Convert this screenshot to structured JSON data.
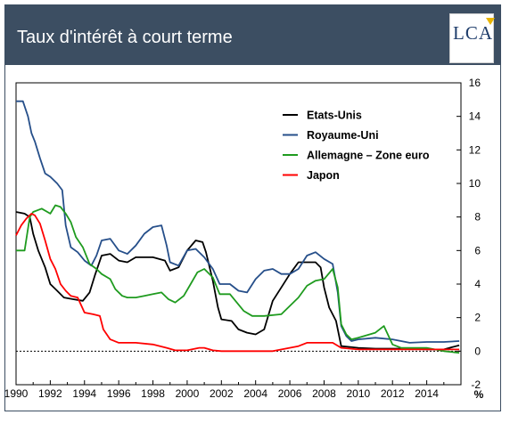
{
  "header": {
    "title": "Taux d'intérêt à court terme",
    "logo_text": "LCA"
  },
  "colors": {
    "header_bg": "#3c4e62",
    "us": "#000000",
    "uk": "#264f8a",
    "de": "#1f9b1f",
    "jp": "#ff0000"
  },
  "chart_data": {
    "type": "line",
    "title": "Taux d'intérêt à court terme",
    "xlabel": "",
    "ylabel": "%",
    "xlim": [
      1990,
      2016
    ],
    "ylim": [
      -2,
      16
    ],
    "x_ticks": [
      1990,
      1992,
      1994,
      1996,
      1998,
      2000,
      2002,
      2004,
      2006,
      2008,
      2010,
      2012,
      2014
    ],
    "y_ticks": [
      -2,
      0,
      2,
      4,
      6,
      8,
      10,
      12,
      14,
      16
    ],
    "unit_label": "%",
    "legend_position": "top-right",
    "zero_line": "dashed",
    "series": [
      {
        "name": "Etats-Unis",
        "color": "#000000",
        "points": [
          [
            1990,
            8.3
          ],
          [
            1990.5,
            8.2
          ],
          [
            1990.8,
            8.0
          ],
          [
            1991,
            7.0
          ],
          [
            1991.3,
            6.0
          ],
          [
            1991.7,
            5.0
          ],
          [
            1992,
            4.0
          ],
          [
            1992.4,
            3.6
          ],
          [
            1992.8,
            3.2
          ],
          [
            1993.3,
            3.1
          ],
          [
            1993.9,
            3.0
          ],
          [
            1994.3,
            3.5
          ],
          [
            1994.6,
            4.5
          ],
          [
            1995,
            5.7
          ],
          [
            1995.5,
            5.8
          ],
          [
            1996,
            5.4
          ],
          [
            1996.5,
            5.3
          ],
          [
            1997,
            5.6
          ],
          [
            1997.5,
            5.6
          ],
          [
            1998,
            5.6
          ],
          [
            1998.7,
            5.4
          ],
          [
            1999,
            4.8
          ],
          [
            1999.5,
            5.0
          ],
          [
            2000,
            6.0
          ],
          [
            2000.5,
            6.6
          ],
          [
            2000.9,
            6.5
          ],
          [
            2001.1,
            5.9
          ],
          [
            2001.5,
            4.2
          ],
          [
            2001.8,
            2.6
          ],
          [
            2002,
            1.9
          ],
          [
            2002.6,
            1.8
          ],
          [
            2003,
            1.3
          ],
          [
            2003.5,
            1.1
          ],
          [
            2004,
            1.0
          ],
          [
            2004.5,
            1.3
          ],
          [
            2005,
            3.0
          ],
          [
            2005.5,
            3.8
          ],
          [
            2006,
            4.6
          ],
          [
            2006.5,
            5.3
          ],
          [
            2007,
            5.3
          ],
          [
            2007.5,
            5.3
          ],
          [
            2007.8,
            5.0
          ],
          [
            2008,
            3.8
          ],
          [
            2008.3,
            2.6
          ],
          [
            2008.7,
            1.8
          ],
          [
            2009,
            0.3
          ],
          [
            2009.5,
            0.25
          ],
          [
            2010,
            0.2
          ],
          [
            2011,
            0.15
          ],
          [
            2012,
            0.15
          ],
          [
            2013,
            0.15
          ],
          [
            2014,
            0.1
          ],
          [
            2015,
            0.1
          ],
          [
            2015.9,
            0.35
          ]
        ]
      },
      {
        "name": "Royaume-Uni",
        "color": "#264f8a",
        "points": [
          [
            1990,
            14.9
          ],
          [
            1990.4,
            14.9
          ],
          [
            1990.7,
            14.0
          ],
          [
            1990.9,
            13.0
          ],
          [
            1991.1,
            12.5
          ],
          [
            1991.4,
            11.5
          ],
          [
            1991.7,
            10.6
          ],
          [
            1992,
            10.4
          ],
          [
            1992.4,
            10.0
          ],
          [
            1992.7,
            9.6
          ],
          [
            1992.9,
            7.5
          ],
          [
            1993.2,
            6.2
          ],
          [
            1993.6,
            5.9
          ],
          [
            1994,
            5.4
          ],
          [
            1994.4,
            5.1
          ],
          [
            1994.7,
            5.7
          ],
          [
            1995,
            6.6
          ],
          [
            1995.5,
            6.7
          ],
          [
            1996,
            6.0
          ],
          [
            1996.5,
            5.8
          ],
          [
            1997,
            6.3
          ],
          [
            1997.5,
            7.0
          ],
          [
            1998,
            7.4
          ],
          [
            1998.5,
            7.5
          ],
          [
            1998.8,
            6.3
          ],
          [
            1999,
            5.3
          ],
          [
            1999.5,
            5.1
          ],
          [
            2000,
            6.0
          ],
          [
            2000.5,
            6.1
          ],
          [
            2001,
            5.6
          ],
          [
            2001.5,
            4.9
          ],
          [
            2001.9,
            4.0
          ],
          [
            2002.5,
            4.0
          ],
          [
            2003,
            3.6
          ],
          [
            2003.5,
            3.5
          ],
          [
            2004,
            4.3
          ],
          [
            2004.5,
            4.8
          ],
          [
            2005,
            4.9
          ],
          [
            2005.5,
            4.6
          ],
          [
            2006,
            4.6
          ],
          [
            2006.5,
            4.9
          ],
          [
            2007,
            5.7
          ],
          [
            2007.5,
            5.9
          ],
          [
            2008,
            5.5
          ],
          [
            2008.5,
            5.2
          ],
          [
            2008.8,
            3.5
          ],
          [
            2009,
            1.5
          ],
          [
            2009.3,
            0.9
          ],
          [
            2009.6,
            0.6
          ],
          [
            2010,
            0.7
          ],
          [
            2011,
            0.8
          ],
          [
            2012,
            0.7
          ],
          [
            2013,
            0.5
          ],
          [
            2014,
            0.55
          ],
          [
            2015,
            0.55
          ],
          [
            2015.9,
            0.6
          ]
        ]
      },
      {
        "name": "Allemagne – Zone euro",
        "color": "#1f9b1f",
        "points": [
          [
            1990,
            6.0
          ],
          [
            1990.5,
            6.0
          ],
          [
            1990.8,
            8.0
          ],
          [
            1991,
            8.3
          ],
          [
            1991.5,
            8.5
          ],
          [
            1992,
            8.2
          ],
          [
            1992.3,
            8.7
          ],
          [
            1992.6,
            8.6
          ],
          [
            1992.9,
            8.2
          ],
          [
            1993.2,
            7.7
          ],
          [
            1993.5,
            6.8
          ],
          [
            1993.9,
            6.2
          ],
          [
            1994.3,
            5.2
          ],
          [
            1994.7,
            4.9
          ],
          [
            1995,
            4.6
          ],
          [
            1995.5,
            4.3
          ],
          [
            1995.8,
            3.7
          ],
          [
            1996.2,
            3.3
          ],
          [
            1996.5,
            3.2
          ],
          [
            1997,
            3.2
          ],
          [
            1997.5,
            3.3
          ],
          [
            1998,
            3.4
          ],
          [
            1998.5,
            3.5
          ],
          [
            1998.9,
            3.1
          ],
          [
            1999.3,
            2.9
          ],
          [
            1999.8,
            3.3
          ],
          [
            2000.2,
            4.0
          ],
          [
            2000.6,
            4.7
          ],
          [
            2001,
            4.9
          ],
          [
            2001.5,
            4.4
          ],
          [
            2001.9,
            3.4
          ],
          [
            2002.5,
            3.4
          ],
          [
            2002.9,
            2.9
          ],
          [
            2003.3,
            2.4
          ],
          [
            2003.8,
            2.1
          ],
          [
            2004.5,
            2.1
          ],
          [
            2005.5,
            2.2
          ],
          [
            2006,
            2.7
          ],
          [
            2006.5,
            3.2
          ],
          [
            2007,
            3.9
          ],
          [
            2007.5,
            4.2
          ],
          [
            2008,
            4.3
          ],
          [
            2008.5,
            4.9
          ],
          [
            2008.8,
            3.8
          ],
          [
            2009,
            1.6
          ],
          [
            2009.3,
            1.0
          ],
          [
            2009.6,
            0.7
          ],
          [
            2010,
            0.8
          ],
          [
            2011,
            1.1
          ],
          [
            2011.5,
            1.5
          ],
          [
            2012,
            0.4
          ],
          [
            2012.5,
            0.2
          ],
          [
            2013,
            0.2
          ],
          [
            2014,
            0.2
          ],
          [
            2015,
            0.0
          ],
          [
            2015.9,
            -0.1
          ]
        ]
      },
      {
        "name": "Japon",
        "color": "#ff0000",
        "points": [
          [
            1990,
            6.9
          ],
          [
            1990.3,
            7.5
          ],
          [
            1990.6,
            7.9
          ],
          [
            1990.9,
            8.2
          ],
          [
            1991.1,
            8.1
          ],
          [
            1991.4,
            7.6
          ],
          [
            1991.7,
            6.6
          ],
          [
            1992,
            5.5
          ],
          [
            1992.3,
            4.9
          ],
          [
            1992.6,
            4.0
          ],
          [
            1992.9,
            3.6
          ],
          [
            1993.2,
            3.3
          ],
          [
            1993.6,
            3.2
          ],
          [
            1994,
            2.3
          ],
          [
            1994.5,
            2.2
          ],
          [
            1994.9,
            2.1
          ],
          [
            1995.1,
            1.3
          ],
          [
            1995.5,
            0.7
          ],
          [
            1996,
            0.5
          ],
          [
            1997,
            0.5
          ],
          [
            1998,
            0.4
          ],
          [
            1998.8,
            0.2
          ],
          [
            1999.3,
            0.05
          ],
          [
            2000,
            0.05
          ],
          [
            2000.7,
            0.2
          ],
          [
            2001,
            0.2
          ],
          [
            2001.5,
            0.05
          ],
          [
            2002,
            0.0
          ],
          [
            2005,
            0.0
          ],
          [
            2006.5,
            0.3
          ],
          [
            2007,
            0.5
          ],
          [
            2008.5,
            0.5
          ],
          [
            2009,
            0.2
          ],
          [
            2010,
            0.1
          ],
          [
            2012,
            0.1
          ],
          [
            2014,
            0.1
          ],
          [
            2015.9,
            0.1
          ]
        ]
      }
    ]
  }
}
